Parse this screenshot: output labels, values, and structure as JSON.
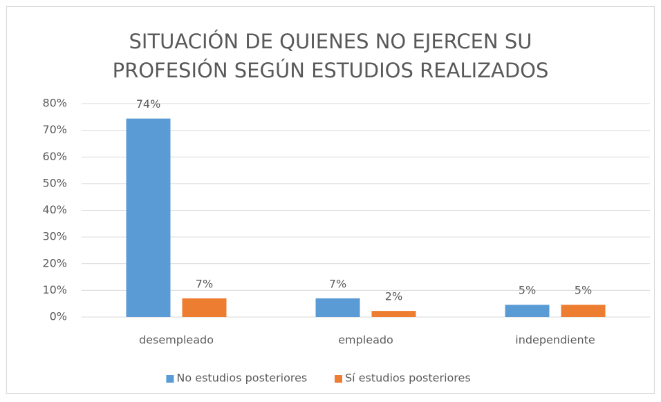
{
  "chart_data": {
    "type": "bar",
    "title": [
      "SITUACIÓN DE QUIENES NO EJERCEN SU",
      "PROFESIÓN SEGÚN ESTUDIOS REALIZADOS"
    ],
    "categories": [
      "desempleado",
      "empleado",
      "independiente"
    ],
    "series": [
      {
        "name": "No estudios posteriores",
        "color": "#5b9bd5",
        "values": [
          74.4,
          7,
          4.6
        ],
        "value_labels": [
          "74%",
          "7%",
          "5%"
        ]
      },
      {
        "name": "Sí estudios posteriores",
        "color": "#ed7d31",
        "values": [
          7,
          2.3,
          4.6
        ],
        "value_labels": [
          "7%",
          "2%",
          "5%"
        ]
      }
    ],
    "ylim": [
      0,
      80
    ],
    "yticks": [
      {
        "value": 0,
        "label": "0%"
      },
      {
        "value": 10,
        "label": "10%"
      },
      {
        "value": 20,
        "label": "20%"
      },
      {
        "value": 30,
        "label": "30%"
      },
      {
        "value": 40,
        "label": "40%"
      },
      {
        "value": 50,
        "label": "50%"
      },
      {
        "value": 60,
        "label": "60%"
      },
      {
        "value": 70,
        "label": "70%"
      },
      {
        "value": 80,
        "label": "80%"
      }
    ],
    "grid": true,
    "legend": "bottom"
  }
}
